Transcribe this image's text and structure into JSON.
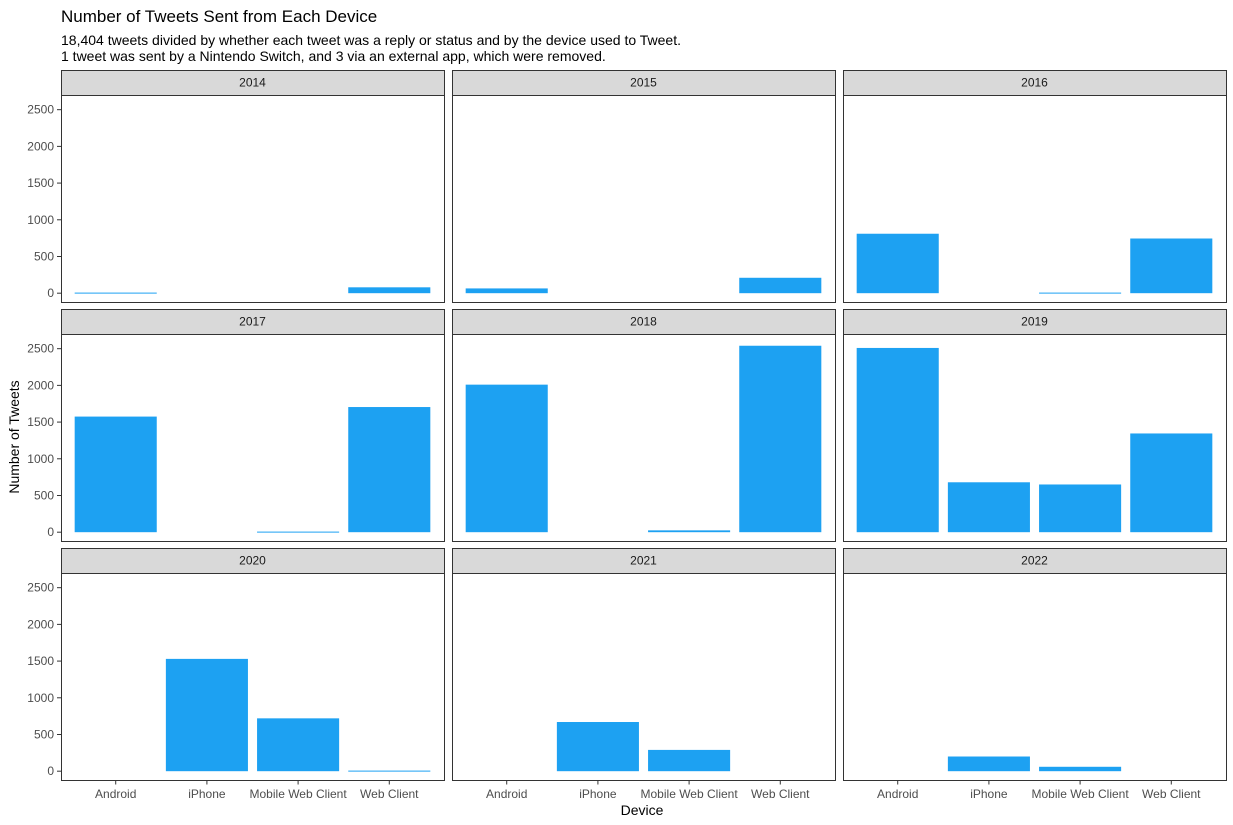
{
  "colors": {
    "bar": "#1da1f2",
    "strip_fill": "#d9d9d9",
    "panel_border": "#333333",
    "tick_text": "#4d4d4d"
  },
  "chart_data": {
    "type": "bar",
    "title": "Number of Tweets Sent from Each Device",
    "subtitle_lines": [
      "18,404 tweets divided by whether each tweet was a reply or status and by the device used to Tweet.",
      "1 tweet was sent by a Nintendo Switch, and 3 via an external app, which were removed."
    ],
    "xlabel": "Device",
    "ylabel": "Number of Tweets",
    "categories": [
      "Android",
      "iPhone",
      "Mobile Web Client",
      "Web Client"
    ],
    "ylim": [
      -120,
      2700
    ],
    "yticks": [
      0,
      500,
      1000,
      1500,
      2000,
      2500
    ],
    "grid": false,
    "facet_layout": {
      "rows": 3,
      "cols": 3
    },
    "facets": [
      {
        "label": "2014",
        "values": [
          8,
          0,
          0,
          80
        ]
      },
      {
        "label": "2015",
        "values": [
          65,
          0,
          0,
          210
        ]
      },
      {
        "label": "2016",
        "values": [
          810,
          0,
          8,
          745
        ]
      },
      {
        "label": "2017",
        "values": [
          1575,
          0,
          8,
          1705
        ]
      },
      {
        "label": "2018",
        "values": [
          2010,
          0,
          25,
          2540
        ]
      },
      {
        "label": "2019",
        "values": [
          2510,
          680,
          650,
          1345
        ]
      },
      {
        "label": "2020",
        "values": [
          0,
          1530,
          720,
          8
        ]
      },
      {
        "label": "2021",
        "values": [
          0,
          670,
          290,
          0
        ]
      },
      {
        "label": "2022",
        "values": [
          0,
          200,
          60,
          0
        ]
      }
    ]
  }
}
